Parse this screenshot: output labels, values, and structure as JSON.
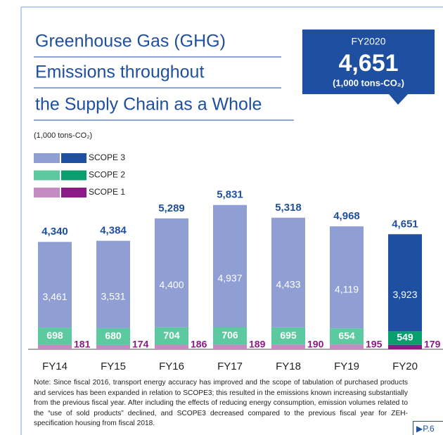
{
  "chart_data": {
    "type": "stacked_bar",
    "title": [
      "Greenhouse Gas (GHG)",
      "Emissions throughout",
      "the Supply Chain as a Whole"
    ],
    "unit_label": "(1,000 tons-CO₂)",
    "callout": {
      "label": "FY2020",
      "value_label": "4,651",
      "unit": "(1,000 tons-CO₂)"
    },
    "categories": [
      "FY14",
      "FY15",
      "FY16",
      "FY17",
      "FY18",
      "FY19",
      "FY20"
    ],
    "highlight": "FY20",
    "series": [
      {
        "name": "SCOPE 1",
        "color": "#c58ac2",
        "highlight_color": "#8b1a87",
        "values": [
          181,
          174,
          186,
          189,
          190,
          195,
          179
        ]
      },
      {
        "name": "SCOPE 2",
        "color": "#5cc9a0",
        "highlight_color": "#0a9d6e",
        "values": [
          698,
          680,
          704,
          706,
          695,
          654,
          549
        ]
      },
      {
        "name": "SCOPE 3",
        "color": "#8f9fd4",
        "highlight_color": "#1f4fa0",
        "values": [
          3461,
          3531,
          4400,
          4937,
          4433,
          4119,
          3923
        ],
        "value_labels": [
          "3,461",
          "3,531",
          "4,400",
          "4,937",
          "4,433",
          "4,119",
          "3,923"
        ]
      }
    ],
    "totals": {
      "values": [
        4340,
        4384,
        5289,
        5831,
        5318,
        4968,
        4651
      ],
      "value_labels": [
        "4,340",
        "4,384",
        "5,289",
        "5,831",
        "5,318",
        "4,968",
        "4,651"
      ]
    },
    "note": "Note: Since fiscal 2016, transport energy accuracy has improved and the scope of tabulation of purchased products and services has been expanded in relation to SCOPE3; this resulted in the emissions known increasing substantially from the previous fiscal year. After including the effects of reducing energy consumption, emission volumes related to the “use of sold products” declined, and SCOPE3 decreased compared to the previous fiscal year for ZEH-specification housing from fiscal 2018.",
    "page_ref": "▶P.6"
  }
}
